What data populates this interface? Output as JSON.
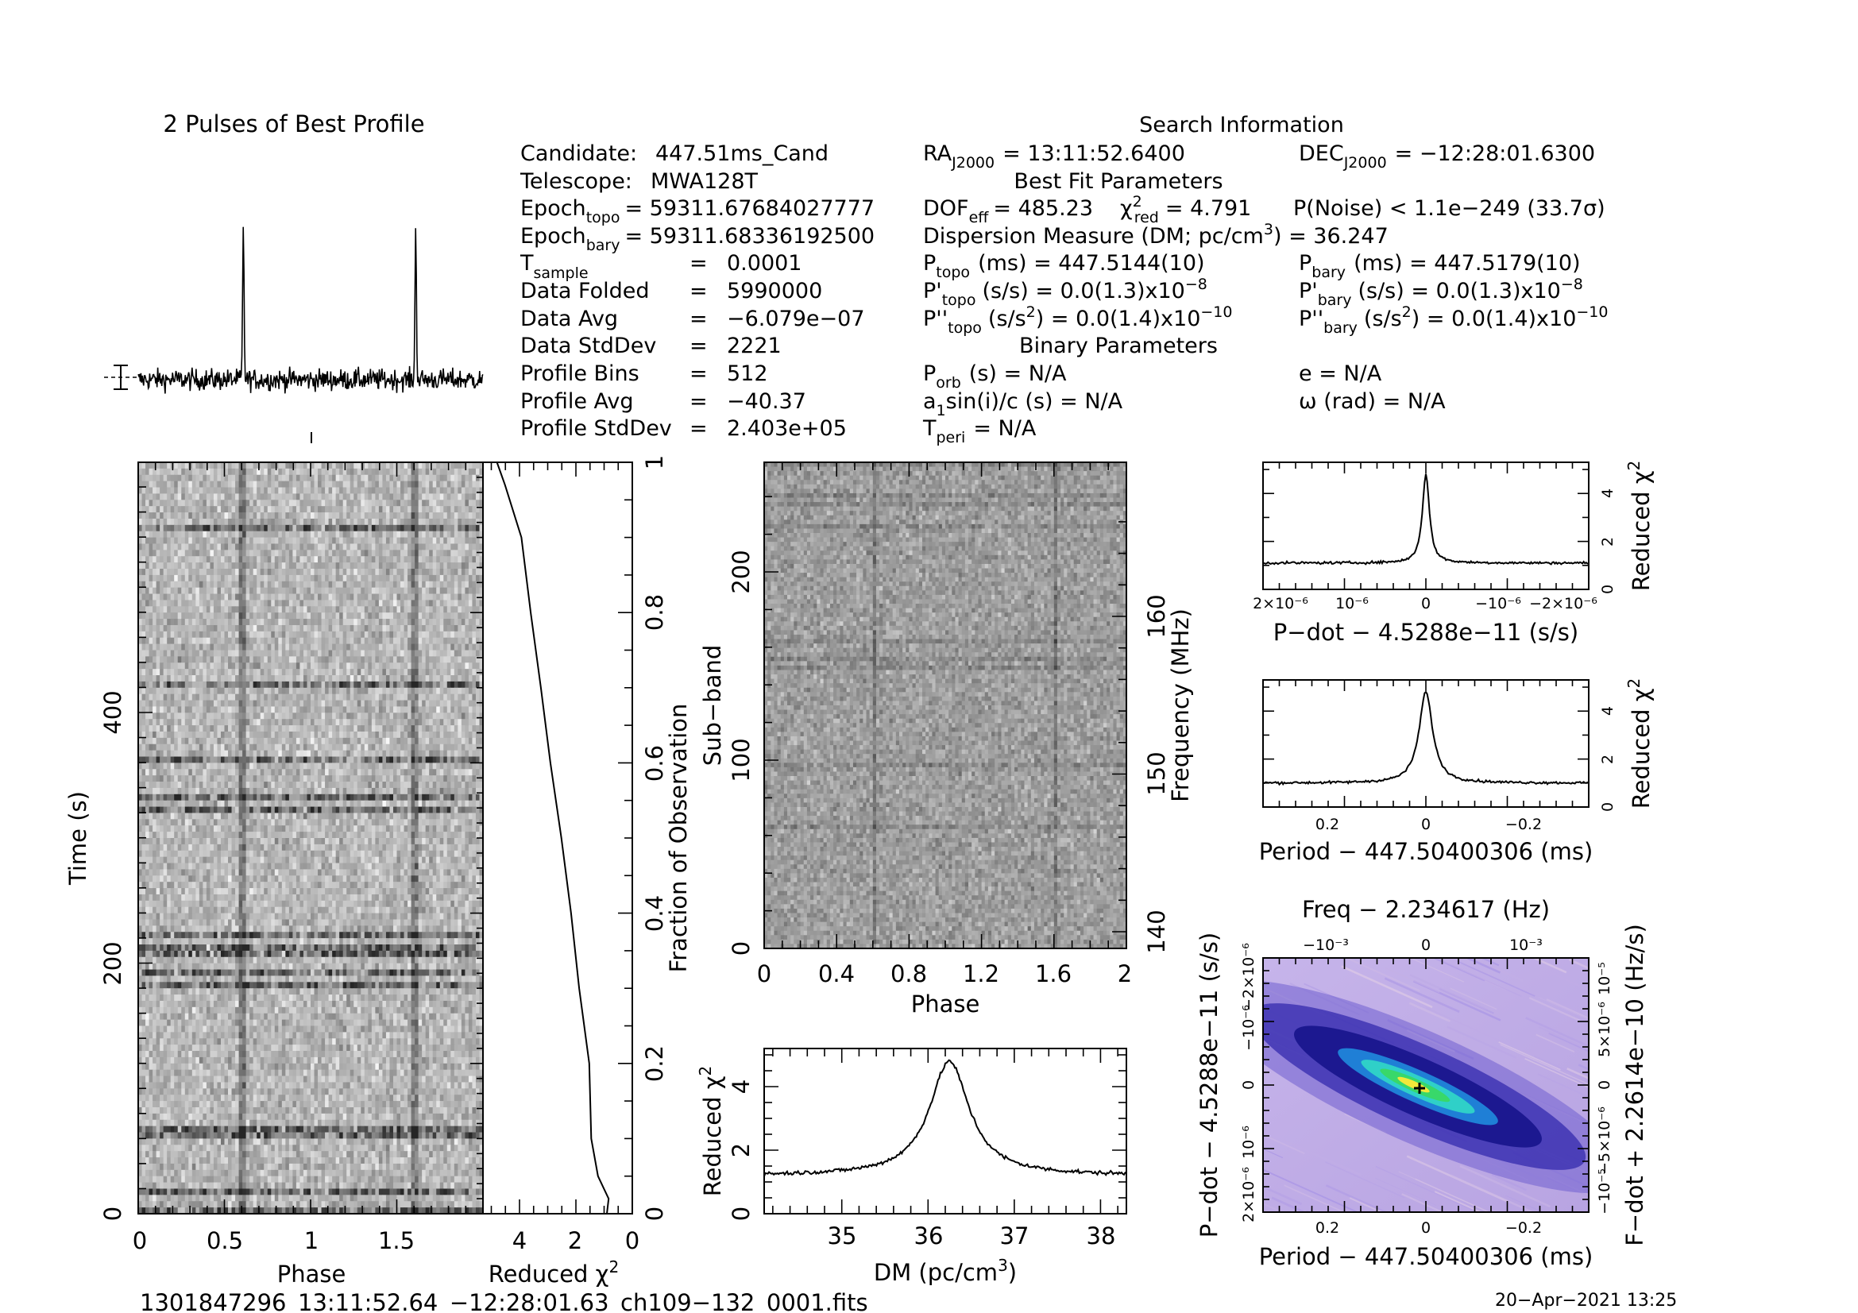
{
  "profile_title": "2 Pulses of Best Profile",
  "info": {
    "title": "Search Information",
    "candidate": {
      "label": "Candidate:",
      "value": "447.51ms_Cand"
    },
    "telescope": {
      "label": "Telescope:",
      "value": "MWA128T"
    },
    "epoch_topo": {
      "label": "Epoch",
      "sub": "topo",
      "value": "= 59311.67684027777"
    },
    "epoch_bary": {
      "label": "Epoch",
      "sub": "bary",
      "value": "= 59311.68336192500"
    },
    "t_sample": {
      "label": "T",
      "sub": "sample",
      "eq": "=",
      "value": "0.0001"
    },
    "data_folded": {
      "label": "Data Folded",
      "eq": "=",
      "value": "5990000"
    },
    "data_avg": {
      "label": "Data Avg",
      "eq": "=",
      "value": "−6.079e−07"
    },
    "data_stddev": {
      "label": "Data StdDev",
      "eq": "=",
      "value": "2221"
    },
    "profile_bins": {
      "label": "Profile Bins",
      "eq": "=",
      "value": "512"
    },
    "profile_avg": {
      "label": "Profile Avg",
      "eq": "=",
      "value": "−40.37"
    },
    "profile_stddev": {
      "label": "Profile StdDev",
      "eq": "=",
      "value": "2.403e+05"
    },
    "ra": {
      "label": "RA",
      "sub": "J2000",
      "value": "= 13:11:52.6400"
    },
    "dec": {
      "label": "DEC",
      "sub": "J2000",
      "value": "= −12:28:01.6300"
    },
    "best_fit_header": "Best Fit Parameters",
    "dof": {
      "label": "DOF",
      "sub": "eff",
      "value": "= 485.23"
    },
    "chi2": {
      "label": "χ",
      "sup": "2",
      "sub": "red",
      "value": "= 4.791"
    },
    "pnoise": {
      "value": "P(Noise) < 1.1e−249   (33.7σ)"
    },
    "dm_line": {
      "value": "Dispersion Measure (DM; pc/cm",
      "sup": "3",
      "tail": ") = 36.247"
    },
    "p_topo": {
      "label": "P",
      "sub": "topo",
      "value": "(ms) =  447.5144(10)"
    },
    "p_bary": {
      "label": "P",
      "sub": "bary",
      "value": "(ms) =  447.5179(10)"
    },
    "pd_topo": {
      "label": "P'",
      "sub": "topo",
      "value": "(s/s) = 0.0(1.3)x10",
      "sup": "−8"
    },
    "pd_bary": {
      "label": "P'",
      "sub": "bary",
      "value": "(s/s) = 0.0(1.3)x10",
      "sup": "−8"
    },
    "pdd_topo": {
      "label": "P''",
      "sub": "topo",
      "value": "(s/s",
      "sup1": "2",
      "value2": ") = 0.0(1.4)x10",
      "sup": "−10"
    },
    "pdd_bary": {
      "label": "P''",
      "sub": "bary",
      "value": "(s/s",
      "sup1": "2",
      "value2": ") = 0.0(1.4)x10",
      "sup": "−10"
    },
    "binary_header": "Binary Parameters",
    "p_orb": {
      "label": "P",
      "sub": "orb",
      "value": "(s) = N/A"
    },
    "e": {
      "value": "e = N/A"
    },
    "a1sini": {
      "label": "a",
      "sub": "1",
      "value": "sin(i)/c (s) = N/A"
    },
    "omega": {
      "value": "ω (rad) = N/A"
    },
    "t_peri": {
      "label": "T",
      "sub": "peri",
      "value": "= N/A"
    }
  },
  "footer": {
    "filename": "1301847296_13:11:52.64_−12:28:01.63_ch109−132_0001.fits",
    "date": "20−Apr−2021 13:25"
  },
  "colors": {
    "ink": "#000000",
    "accent_cross": "#000000"
  },
  "chart_data": [
    {
      "type": "line",
      "name": "profile",
      "title": "2 Pulses of Best Profile",
      "xlim": [
        0,
        2
      ],
      "peaks": [
        0.61,
        1.61
      ],
      "peak_height": 11
    },
    {
      "type": "heatmap",
      "name": "time-phase",
      "xlabel": "Phase",
      "ylabel": "Time (s)",
      "xlim": [
        0,
        2
      ],
      "ylim": [
        0,
        600
      ],
      "x_ticks": [
        "0",
        "0.5",
        "1",
        "1.5"
      ],
      "y_ticks": [
        "0",
        "200",
        "400"
      ],
      "pulse_phase": [
        0.61,
        1.61
      ]
    },
    {
      "type": "line",
      "name": "reduced-chi2-vs-time",
      "xlabel": "Reduced χ",
      "xlabel_sup": "2",
      "ylabel": "Fraction of Observation",
      "x_ticks": [
        "4",
        "2",
        "0"
      ],
      "y_ticks": [
        "0",
        "0.2",
        "0.4",
        "0.6",
        "0.8",
        "1"
      ],
      "points": [
        [
          0.9,
          0.0
        ],
        [
          0.85,
          0.02
        ],
        [
          1.2,
          0.05
        ],
        [
          1.45,
          0.1
        ],
        [
          1.55,
          0.2
        ],
        [
          1.9,
          0.3
        ],
        [
          2.2,
          0.4
        ],
        [
          2.55,
          0.5
        ],
        [
          2.9,
          0.6
        ],
        [
          3.25,
          0.7
        ],
        [
          3.6,
          0.8
        ],
        [
          3.95,
          0.9
        ],
        [
          4.55,
          0.97
        ],
        [
          4.8,
          1.0
        ]
      ]
    },
    {
      "type": "heatmap",
      "name": "subband-phase",
      "xlabel": "Phase",
      "ylabel": "Sub−band",
      "ylabel_right": "Frequency (MHz)",
      "x_ticks": [
        "0",
        "0.4",
        "0.8",
        "1.2",
        "1.6",
        "2"
      ],
      "y_ticks": [
        "0",
        "100",
        "200"
      ],
      "y_ticks_right": [
        "140",
        "150",
        "160"
      ],
      "pulse_phase": [
        0.61,
        1.61
      ]
    },
    {
      "type": "line",
      "name": "dm-curve",
      "xlabel": "DM (pc/cm",
      "xlabel_sup": "3",
      "xlabel_tail": ")",
      "ylabel": "Reduced χ",
      "ylabel_sup": "2",
      "xlim": [
        34.1,
        38.3
      ],
      "ylim": [
        0,
        5.2
      ],
      "x_ticks": [
        "35",
        "36",
        "37",
        "38"
      ],
      "y_ticks": [
        "0",
        "2",
        "4"
      ],
      "center": 36.247,
      "peak": 4.8,
      "baseline": 1.2
    },
    {
      "type": "line",
      "name": "pdot-curve",
      "xlabel": "P−dot − 4.5288e−11 (s/s)",
      "ylabel": "Reduced χ",
      "ylabel_sup": "2",
      "x_ticks": [
        "2×10⁻⁶",
        "10⁻⁶",
        "0",
        "−10⁻⁶",
        "−2×10⁻⁶"
      ],
      "y_ticks": [
        "0",
        "2",
        "4"
      ],
      "peak": 4.8,
      "baseline": 1.1
    },
    {
      "type": "line",
      "name": "period-curve",
      "xlabel": "Period − 447.50400306 (ms)",
      "ylabel": "Reduced χ",
      "ylabel_sup": "2",
      "x_ticks": [
        "0.2",
        "0",
        "−0.2"
      ],
      "y_ticks": [
        "0",
        "2",
        "4"
      ],
      "peak": 4.8,
      "baseline": 1.0
    },
    {
      "type": "heatmap",
      "name": "period-pdot-plane",
      "title": "Freq − 2.234617 (Hz)",
      "xlabel": "Period − 447.50400306 (ms)",
      "ylabel": "P−dot − 4.5288e−11 (s/s)",
      "ylabel_right": "F−dot + 2.2614e−10 (Hz/s)",
      "x_ticks": [
        "0.2",
        "0",
        "−0.2"
      ],
      "top_ticks": [
        "−10⁻³",
        "0",
        "10⁻³"
      ],
      "y_ticks_left": [
        "2×10⁻⁶",
        "10⁻⁶",
        "0",
        "−10⁻⁶",
        "−2×10⁻⁶"
      ],
      "y_ticks_right": [
        "−10⁻⁵",
        "−5×10⁻⁶",
        "0",
        "5×10⁻⁶",
        "10⁻⁵"
      ]
    }
  ]
}
